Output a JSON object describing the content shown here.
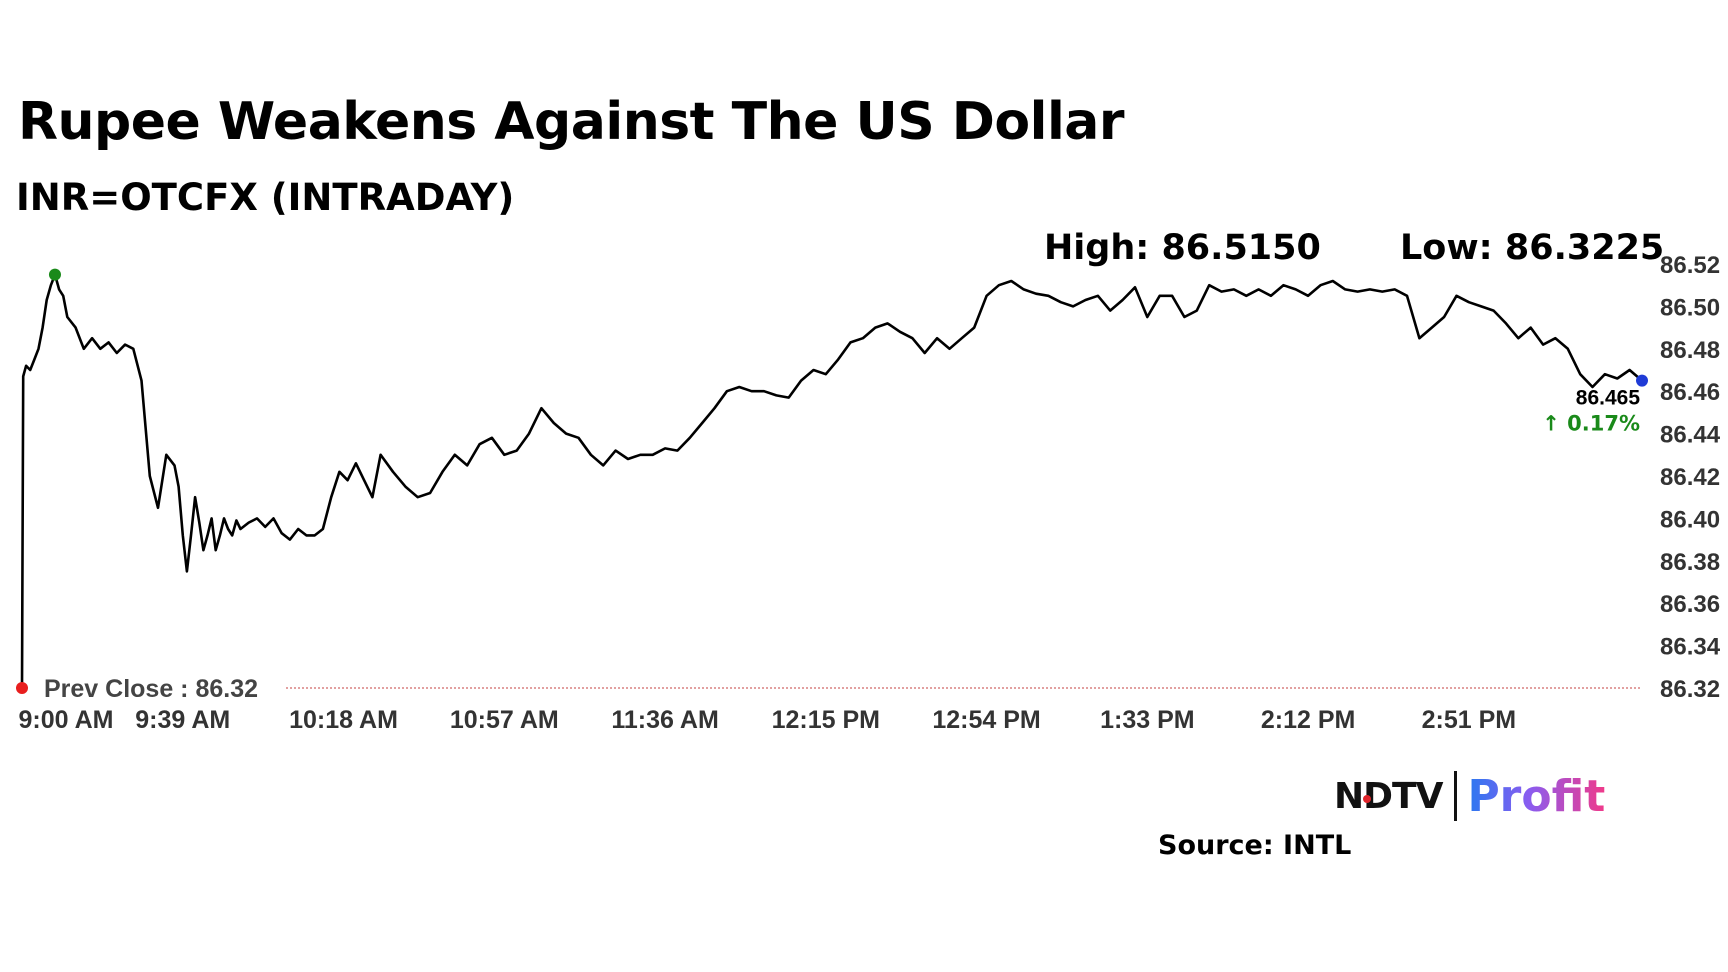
{
  "header": {
    "title": "Rupee Weakens Against The US Dollar",
    "subtitle": "INR=OTCFX (INTRADAY)"
  },
  "stats": {
    "high_label": "High: 86.5150",
    "low_label": "Low: 86.3225"
  },
  "footer": {
    "logo_ndtv": "NDTV",
    "logo_profit": "Profit",
    "source": "Source: INTL"
  },
  "colors": {
    "line": "#000000",
    "high_marker": "#1a8a1a",
    "start_marker": "#e81e1e",
    "end_marker": "#1f3bd6",
    "change_up": "#1a8a1a",
    "prev_close_line": "#d98080",
    "axis_text": "#333333"
  },
  "chart_data": {
    "type": "line",
    "title": "Rupee Weakens Against The US Dollar",
    "subtitle": "INR=OTCFX (INTRADAY)",
    "ylim": [
      86.32,
      86.52
    ],
    "y_ticks": [
      "86.52",
      "86.50",
      "86.48",
      "86.46",
      "86.44",
      "86.42",
      "86.40",
      "86.38",
      "86.36",
      "86.34",
      "86.32"
    ],
    "x_ticks": [
      "9:00 AM",
      "9:39 AM",
      "10:18 AM",
      "10:57 AM",
      "11:36 AM",
      "12:15 PM",
      "12:54 PM",
      "1:33 PM",
      "2:12 PM",
      "2:51 PM"
    ],
    "x_tick_minutes": [
      0,
      39,
      78,
      117,
      156,
      195,
      234,
      273,
      312,
      351
    ],
    "x_range_minutes": [
      0,
      393
    ],
    "x_axis_start": "9:00 AM",
    "prev_close": 86.32,
    "prev_close_label": "Prev Close : 86.32",
    "last_value_label": "86.465",
    "change_label": "↑ 0.17%",
    "grid": false,
    "series": [
      {
        "x": [
          0,
          0.3,
          1,
          2,
          3,
          4,
          5,
          6,
          7,
          8,
          9,
          10,
          11,
          13,
          15,
          17,
          19,
          21,
          23,
          25,
          27,
          29,
          31,
          33,
          35,
          37,
          38,
          39,
          40,
          41,
          42,
          43,
          44,
          45,
          46,
          47,
          48,
          49,
          50,
          51,
          52,
          53,
          55,
          57,
          59,
          61,
          63,
          65,
          67,
          69,
          71,
          73,
          75,
          77,
          79,
          81,
          83,
          85,
          87,
          90,
          93,
          96,
          99,
          102,
          105,
          108,
          111,
          114,
          117,
          120,
          123,
          126,
          129,
          132,
          135,
          138,
          141,
          144,
          147,
          150,
          153,
          156,
          159,
          162,
          165,
          168,
          171,
          174,
          177,
          180,
          183,
          186,
          189,
          192,
          195,
          198,
          201,
          204,
          207,
          210,
          213,
          216,
          219,
          222,
          225,
          228,
          231,
          234,
          237,
          240,
          243,
          246,
          249,
          252,
          255,
          258,
          261,
          264,
          267,
          270,
          273,
          276,
          279,
          282,
          285,
          288,
          291,
          294,
          297,
          300,
          303,
          306,
          309,
          312,
          315,
          318,
          321,
          324,
          327,
          330,
          333,
          336,
          339,
          342,
          345,
          348,
          351,
          354,
          357,
          360,
          363,
          366,
          369,
          372,
          375,
          378,
          381,
          384,
          387,
          390,
          393
        ],
        "y": [
          86.32,
          86.467,
          86.472,
          86.47,
          86.475,
          86.48,
          86.49,
          86.503,
          86.51,
          86.515,
          86.508,
          86.505,
          86.495,
          86.49,
          86.48,
          86.485,
          86.48,
          86.483,
          86.478,
          86.482,
          86.48,
          86.465,
          86.42,
          86.405,
          86.43,
          86.425,
          86.415,
          86.392,
          86.375,
          86.392,
          86.41,
          86.398,
          86.385,
          86.392,
          86.4,
          86.385,
          86.392,
          86.4,
          86.395,
          86.392,
          86.399,
          86.395,
          86.398,
          86.4,
          86.396,
          86.4,
          86.393,
          86.39,
          86.395,
          86.392,
          86.392,
          86.395,
          86.41,
          86.422,
          86.418,
          86.426,
          86.418,
          86.41,
          86.43,
          86.422,
          86.415,
          86.41,
          86.412,
          86.422,
          86.43,
          86.425,
          86.435,
          86.438,
          86.43,
          86.432,
          86.44,
          86.452,
          86.445,
          86.44,
          86.438,
          86.43,
          86.425,
          86.432,
          86.428,
          86.43,
          86.43,
          86.433,
          86.432,
          86.438,
          86.445,
          86.452,
          86.46,
          86.462,
          86.46,
          86.46,
          86.458,
          86.457,
          86.465,
          86.47,
          86.468,
          86.475,
          86.483,
          86.485,
          86.49,
          86.492,
          86.488,
          86.485,
          86.478,
          86.485,
          86.48,
          86.485,
          86.49,
          86.505,
          86.51,
          86.512,
          86.508,
          86.506,
          86.505,
          86.502,
          86.5,
          86.503,
          86.505,
          86.498,
          86.503,
          86.509,
          86.495,
          86.505,
          86.505,
          86.495,
          86.498,
          86.51,
          86.507,
          86.508,
          86.505,
          86.508,
          86.505,
          86.51,
          86.508,
          86.505,
          86.51,
          86.512,
          86.508,
          86.507,
          86.508,
          86.507,
          86.508,
          86.505,
          86.485,
          86.49,
          86.495,
          86.505,
          86.502,
          86.5,
          86.498,
          86.492,
          86.485,
          86.49,
          86.482,
          86.485,
          86.48,
          86.468,
          86.462,
          86.468,
          86.466,
          86.47,
          86.465
        ]
      }
    ]
  }
}
